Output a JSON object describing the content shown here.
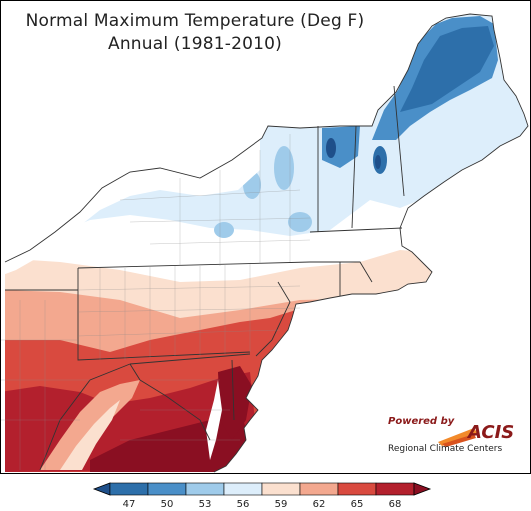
{
  "title": {
    "line1": "Normal Maximum Temperature (Deg F)",
    "line2": "Annual (1981-2010)"
  },
  "logo": {
    "powered_by": "Powered by",
    "name": "ACIS",
    "subtitle": "Regional Climate Centers"
  },
  "colorbar": {
    "ticks": [
      "47",
      "50",
      "53",
      "56",
      "59",
      "62",
      "65",
      "68"
    ],
    "colors": [
      "#2d6faa",
      "#4a8fc8",
      "#9fcbea",
      "#ddeefb",
      "#fbe0cf",
      "#f3a88f",
      "#d94a3f",
      "#b3202d"
    ],
    "under_color": "#1e4f8a",
    "over_color": "#8a0f22"
  },
  "map": {
    "region": "Northeast United States",
    "land_color_low": "#2d6faa",
    "land_color_high": "#8a0f22",
    "water_color": "#ffffff"
  }
}
